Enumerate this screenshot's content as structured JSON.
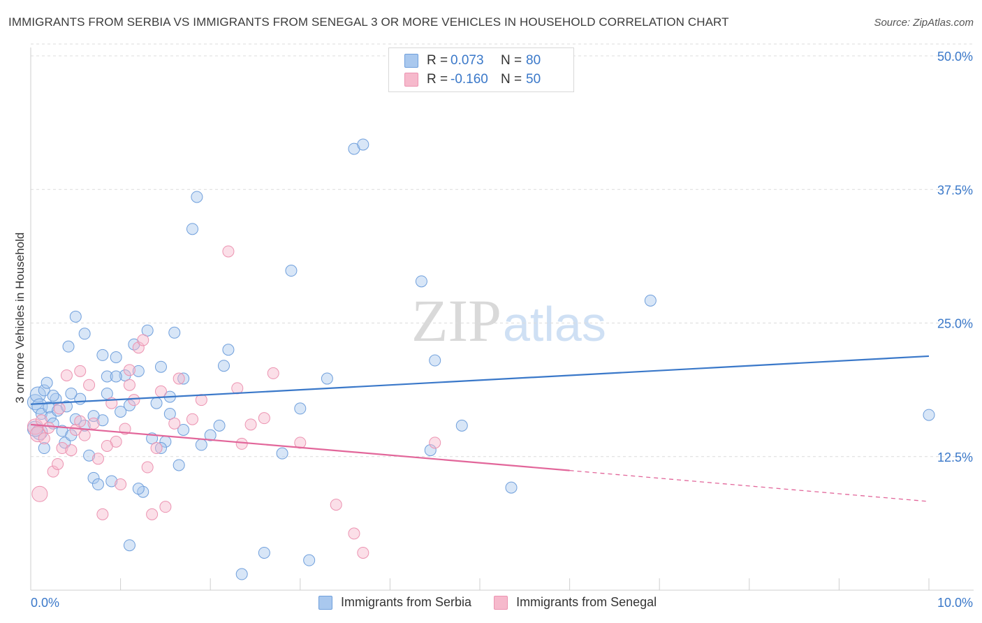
{
  "header": {
    "title": "IMMIGRANTS FROM SERBIA VS IMMIGRANTS FROM SENEGAL 3 OR MORE VEHICLES IN HOUSEHOLD CORRELATION CHART",
    "source": "Source: ZipAtlas.com"
  },
  "watermark": {
    "zip": "ZIP",
    "atlas": "atlas"
  },
  "legend": {
    "rows": [
      {
        "r_label": "R =",
        "r_value": "0.073",
        "n_label": "N =",
        "n_value": "80",
        "color": "#a9c8ee"
      },
      {
        "r_label": "R =",
        "r_value": "-0.160",
        "n_label": "N =",
        "n_value": "50",
        "color": "#f6b9cc"
      }
    ]
  },
  "chart_data": {
    "type": "scatter",
    "title": "IMMIGRANTS FROM SERBIA VS IMMIGRANTS FROM SENEGAL 3 OR MORE VEHICLES IN HOUSEHOLD CORRELATION CHART",
    "xlabel": "",
    "ylabel": "3 or more Vehicles in Household",
    "xlim": [
      0,
      10
    ],
    "ylim": [
      0,
      50
    ],
    "x_tick_labels": [
      "0.0%",
      "10.0%"
    ],
    "y_ticks": [
      12.5,
      25.0,
      37.5,
      50.0
    ],
    "y_tick_labels": [
      "12.5%",
      "25.0%",
      "37.5%",
      "50.0%"
    ],
    "grid": true,
    "legend_position": "top-center",
    "series": [
      {
        "name": "Immigrants from Serbia",
        "color": "#6f9fdc",
        "fill": "#a9c8ee",
        "trend": {
          "x": [
            0,
            10
          ],
          "y": [
            17.4,
            21.9
          ],
          "color": "#3a78c9"
        },
        "points": [
          [
            0.05,
            17.6
          ],
          [
            0.08,
            18.3
          ],
          [
            0.1,
            17.2
          ],
          [
            0.12,
            16.5
          ],
          [
            0.15,
            18.7
          ],
          [
            0.18,
            19.4
          ],
          [
            0.2,
            17.1
          ],
          [
            0.22,
            16.2
          ],
          [
            0.25,
            15.6
          ],
          [
            0.28,
            17.9
          ],
          [
            0.3,
            16.8
          ],
          [
            0.35,
            14.9
          ],
          [
            0.38,
            13.8
          ],
          [
            0.4,
            17.2
          ],
          [
            0.42,
            22.8
          ],
          [
            0.45,
            14.5
          ],
          [
            0.5,
            16.0
          ],
          [
            0.55,
            17.9
          ],
          [
            0.6,
            15.4
          ],
          [
            0.65,
            12.6
          ],
          [
            0.7,
            10.5
          ],
          [
            0.75,
            9.9
          ],
          [
            0.8,
            15.9
          ],
          [
            0.85,
            18.4
          ],
          [
            0.9,
            10.2
          ],
          [
            0.95,
            21.8
          ],
          [
            1.0,
            16.7
          ],
          [
            1.05,
            20.1
          ],
          [
            1.1,
            17.3
          ],
          [
            1.15,
            23.0
          ],
          [
            1.2,
            20.5
          ],
          [
            1.25,
            9.2
          ],
          [
            1.3,
            24.3
          ],
          [
            1.35,
            14.2
          ],
          [
            1.4,
            17.5
          ],
          [
            1.45,
            20.9
          ],
          [
            1.5,
            13.9
          ],
          [
            1.55,
            16.5
          ],
          [
            1.6,
            24.1
          ],
          [
            1.65,
            11.7
          ],
          [
            1.7,
            15.0
          ],
          [
            1.8,
            33.8
          ],
          [
            1.85,
            36.8
          ],
          [
            1.9,
            13.6
          ],
          [
            2.0,
            14.5
          ],
          [
            2.1,
            15.4
          ],
          [
            2.15,
            21.0
          ],
          [
            2.2,
            22.5
          ],
          [
            2.35,
            1.5
          ],
          [
            2.6,
            3.5
          ],
          [
            2.8,
            12.8
          ],
          [
            2.9,
            29.9
          ],
          [
            3.0,
            17.0
          ],
          [
            3.1,
            2.8
          ],
          [
            3.3,
            19.8
          ],
          [
            3.6,
            41.3
          ],
          [
            3.7,
            41.7
          ],
          [
            4.35,
            28.9
          ],
          [
            4.45,
            13.1
          ],
          [
            4.5,
            21.5
          ],
          [
            4.8,
            15.4
          ],
          [
            5.35,
            9.6
          ],
          [
            6.9,
            27.1
          ],
          [
            10.0,
            16.4
          ],
          [
            0.1,
            14.8
          ],
          [
            0.15,
            13.3
          ],
          [
            0.5,
            25.6
          ],
          [
            0.6,
            24.0
          ],
          [
            0.8,
            22.0
          ],
          [
            0.85,
            20.0
          ],
          [
            0.95,
            20.0
          ],
          [
            1.1,
            4.2
          ],
          [
            1.2,
            9.5
          ],
          [
            1.45,
            13.3
          ],
          [
            1.55,
            18.1
          ],
          [
            1.7,
            19.8
          ],
          [
            0.05,
            15.1
          ],
          [
            0.25,
            18.2
          ],
          [
            0.45,
            18.4
          ],
          [
            0.7,
            16.3
          ]
        ]
      },
      {
        "name": "Immigrants from Senegal",
        "color": "#ec93b1",
        "fill": "#f6b9cc",
        "trend": {
          "x": [
            0,
            6.0
          ],
          "y": [
            15.5,
            11.2
          ],
          "color": "#e2669a"
        },
        "trend_dashed": {
          "x": [
            6.0,
            10.0
          ],
          "y": [
            11.2,
            8.3
          ]
        },
        "points": [
          [
            0.05,
            15.3
          ],
          [
            0.08,
            14.6
          ],
          [
            0.1,
            9.0
          ],
          [
            0.12,
            15.9
          ],
          [
            0.15,
            14.2
          ],
          [
            0.2,
            15.2
          ],
          [
            0.25,
            11.1
          ],
          [
            0.3,
            11.8
          ],
          [
            0.32,
            17.0
          ],
          [
            0.35,
            13.3
          ],
          [
            0.4,
            20.1
          ],
          [
            0.45,
            13.1
          ],
          [
            0.5,
            15.0
          ],
          [
            0.55,
            20.5
          ],
          [
            0.6,
            14.5
          ],
          [
            0.65,
            19.2
          ],
          [
            0.7,
            15.6
          ],
          [
            0.75,
            12.3
          ],
          [
            0.8,
            7.1
          ],
          [
            0.9,
            17.5
          ],
          [
            0.95,
            13.9
          ],
          [
            1.0,
            9.9
          ],
          [
            1.05,
            15.1
          ],
          [
            1.1,
            20.6
          ],
          [
            1.15,
            17.8
          ],
          [
            1.2,
            22.7
          ],
          [
            1.25,
            23.4
          ],
          [
            1.3,
            11.5
          ],
          [
            1.35,
            7.1
          ],
          [
            1.4,
            13.3
          ],
          [
            1.45,
            18.6
          ],
          [
            1.5,
            7.8
          ],
          [
            1.6,
            15.6
          ],
          [
            1.65,
            19.8
          ],
          [
            1.8,
            16.0
          ],
          [
            1.9,
            17.8
          ],
          [
            2.2,
            31.7
          ],
          [
            2.3,
            18.9
          ],
          [
            2.35,
            13.7
          ],
          [
            2.45,
            15.5
          ],
          [
            2.6,
            16.1
          ],
          [
            2.7,
            20.3
          ],
          [
            3.0,
            13.8
          ],
          [
            3.4,
            8.0
          ],
          [
            3.6,
            5.3
          ],
          [
            3.7,
            3.5
          ],
          [
            4.5,
            13.8
          ],
          [
            0.55,
            15.8
          ],
          [
            0.85,
            13.5
          ],
          [
            1.1,
            19.2
          ]
        ]
      }
    ]
  },
  "bottom_legend": {
    "items": [
      {
        "label": "Immigrants from Serbia",
        "color": "#a9c8ee"
      },
      {
        "label": "Immigrants from Senegal",
        "color": "#f6b9cc"
      }
    ]
  }
}
